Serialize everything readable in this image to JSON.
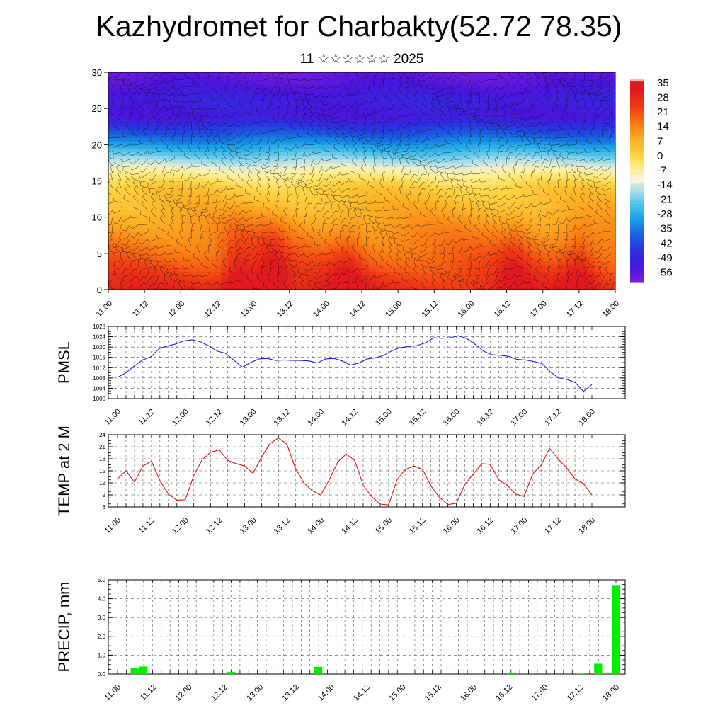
{
  "header": {
    "title": "Kazhydromet for Charbakty(52.72 78.35)",
    "subtitle": "11 ☆☆☆☆☆☆ 2025"
  },
  "colors": {
    "pmsl_line": "#1a1adc",
    "temp_line": "#e01010",
    "precip_bar": "#00ee00",
    "grid": "#555555"
  },
  "chart_data": [
    {
      "type": "heatmap",
      "title": "Kazhydromet for Charbakty(52.72 78.35)",
      "subtitle": "11 ☆☆☆☆☆☆ 2025",
      "xlabel": "",
      "ylabel": "",
      "xtick_labels": [
        "11.00",
        "11.12",
        "12.00",
        "12.12",
        "13.00",
        "13.12",
        "14.00",
        "14.12",
        "15.00",
        "15.12",
        "16.00",
        "16.12",
        "17.00",
        "17.12",
        "18.00"
      ],
      "ylim": [
        0,
        30
      ],
      "yticks": [
        0,
        5,
        10,
        15,
        20,
        25,
        30
      ],
      "colorbar": {
        "labels": [
          "35",
          "28",
          "21",
          "14",
          "7",
          "0",
          "-7",
          "-14",
          "-21",
          "-28",
          "-35",
          "-42",
          "-49",
          "-56"
        ],
        "colors": [
          "#f7b5bd",
          "#e8202a",
          "#f23f12",
          "#fb7a12",
          "#fbac1d",
          "#fcd23a",
          "#fff6a6",
          "#cfe5ef",
          "#4cc3ea",
          "#1ba0e6",
          "#1763dd",
          "#2d2de0",
          "#4a12d8",
          "#8a2be0"
        ]
      },
      "profile": [
        {
          "level": 0,
          "value": 26
        },
        {
          "level": 5,
          "value": 16
        },
        {
          "level": 10,
          "value": 7
        },
        {
          "level": 14,
          "value": 0
        },
        {
          "level": 16,
          "value": -8
        },
        {
          "level": 18,
          "value": -20
        },
        {
          "level": 20,
          "value": -32
        },
        {
          "level": 22,
          "value": -44
        },
        {
          "level": 24,
          "value": -55
        },
        {
          "level": 26,
          "value": -52
        },
        {
          "level": 30,
          "value": -60
        }
      ],
      "warm_centers": [
        {
          "time": 1.8,
          "value": 14
        },
        {
          "time": 2.25,
          "value": 16
        },
        {
          "time": 3.3,
          "value": 10
        },
        {
          "time": 5.6,
          "value": 10
        },
        {
          "time": 6.5,
          "value": 12
        }
      ]
    },
    {
      "type": "line",
      "ylabel": "PMSL",
      "xlabel": "",
      "xtick_labels": [
        "11.00",
        "11.12",
        "12.00",
        "12.12",
        "13.00",
        "13.12",
        "14.00",
        "14.12",
        "15.00",
        "15.12",
        "16.00",
        "16.12",
        "17.00",
        "17.12",
        "18.00"
      ],
      "ylim": [
        1000,
        1028
      ],
      "yticks": [
        1000,
        1004,
        1008,
        1012,
        1016,
        1020,
        1024,
        1028
      ],
      "grid": true,
      "series": [
        {
          "values": [
            1008.2,
            1010.0,
            1012.6,
            1015.0,
            1016.2,
            1019.4,
            1020.4,
            1021.2,
            1022.4,
            1022.8,
            1022.0,
            1020.4,
            1018.4,
            1017.6,
            1014.8,
            1012.2,
            1014.0,
            1015.4,
            1015.6,
            1014.8,
            1015.0,
            1014.8,
            1014.8,
            1014.6,
            1013.8,
            1015.4,
            1015.6,
            1014.6,
            1013.0,
            1013.8,
            1015.4,
            1015.8,
            1016.8,
            1018.6,
            1019.8,
            1020.2,
            1020.6,
            1021.6,
            1023.6,
            1023.4,
            1023.6,
            1024.4,
            1023.2,
            1021.0,
            1018.4,
            1017.0,
            1016.8,
            1016.4,
            1015.2,
            1015.0,
            1014.4,
            1013.6,
            1010.4,
            1008.0,
            1007.4,
            1006.2,
            1002.8,
            1005.4
          ]
        }
      ]
    },
    {
      "type": "line",
      "ylabel": "TEMP at 2 M",
      "xlabel": "",
      "xtick_labels": [
        "11.00",
        "11.12",
        "12.00",
        "12.12",
        "13.00",
        "13.12",
        "14.00",
        "14.12",
        "15.00",
        "15.12",
        "16.00",
        "16.12",
        "17.00",
        "17.12",
        "18.00"
      ],
      "ylim": [
        6,
        24
      ],
      "yticks": [
        6,
        9,
        12,
        15,
        18,
        21,
        24
      ],
      "grid": true,
      "series": [
        {
          "values": [
            13.0,
            15.0,
            12.2,
            16.2,
            17.4,
            12.6,
            9.2,
            7.7,
            7.8,
            13.8,
            17.8,
            19.6,
            20.2,
            17.6,
            16.8,
            16.2,
            14.4,
            18.4,
            21.8,
            23.2,
            21.6,
            15.6,
            12.0,
            10.0,
            9.0,
            12.8,
            17.2,
            19.2,
            17.6,
            11.4,
            8.6,
            6.7,
            6.5,
            12.8,
            15.4,
            16.2,
            15.4,
            11.2,
            8.4,
            6.6,
            6.9,
            11.6,
            14.2,
            16.8,
            16.6,
            12.8,
            11.4,
            9.2,
            8.6,
            14.2,
            16.4,
            20.6,
            18.0,
            15.8,
            13.0,
            11.8,
            9.0
          ]
        }
      ]
    },
    {
      "type": "bar",
      "ylabel": "PRECIP, mm",
      "xlabel": "",
      "xtick_labels": [
        "11.00",
        "11.12",
        "12.00",
        "12.12",
        "13.00",
        "13.12",
        "14.00",
        "14.12",
        "15.00",
        "15.12",
        "16.00",
        "16.12",
        "17.00",
        "17.12",
        "18.00"
      ],
      "ylim": [
        0,
        5
      ],
      "yticks": [
        "0.0",
        "1.0",
        "2.0",
        "3.0",
        "4.0",
        "5.0"
      ],
      "grid": true,
      "bars": [
        {
          "x": 2,
          "value": 0.3
        },
        {
          "x": 3,
          "value": 0.4
        },
        {
          "x": 13,
          "value": 0.12
        },
        {
          "x": 23,
          "value": 0.38
        },
        {
          "x": 45,
          "value": 0.06
        },
        {
          "x": 53,
          "value": 0.03
        },
        {
          "x": 55,
          "value": 0.55
        },
        {
          "x": 56,
          "value": 0.08
        },
        {
          "x": 57,
          "value": 4.72
        }
      ],
      "n_steps": 58
    }
  ]
}
